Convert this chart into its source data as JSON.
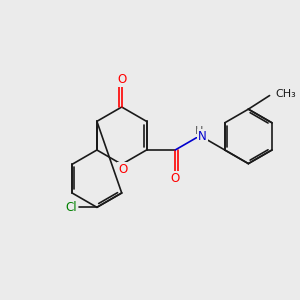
{
  "background_color": "#ebebeb",
  "bond_color": "#1a1a1a",
  "bond_width": 1.2,
  "atom_colors": {
    "O": "#ff0000",
    "N": "#0000cd",
    "Cl": "#008000",
    "C": "#1a1a1a"
  },
  "font_size": 8.5,
  "fig_size": [
    3.0,
    3.0
  ],
  "dpi": 100,
  "xlim": [
    0,
    12
  ],
  "ylim": [
    0,
    10
  ]
}
